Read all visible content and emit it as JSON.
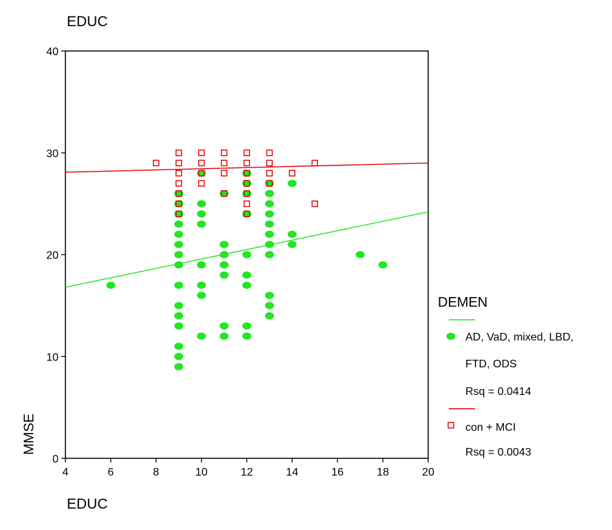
{
  "chart_data": {
    "type": "scatter",
    "title": "EDUC",
    "xlabel": "EDUC",
    "ylabel": "MMSE",
    "xlim": [
      4,
      20
    ],
    "ylim": [
      0,
      40
    ],
    "x_ticks": [
      4,
      6,
      8,
      10,
      12,
      14,
      16,
      18,
      20
    ],
    "y_ticks": [
      0,
      10,
      20,
      30,
      40
    ],
    "legend": {
      "title": "DEMEN",
      "placement": "right"
    },
    "series": [
      {
        "name": "AD, VaD, mixed, LBD, FTD, ODS",
        "marker": "filled-circle",
        "color": "#22e622",
        "points": [
          [
            6,
            17
          ],
          [
            9,
            9
          ],
          [
            9,
            10
          ],
          [
            9,
            11
          ],
          [
            9,
            13
          ],
          [
            9,
            14
          ],
          [
            9,
            15
          ],
          [
            9,
            17
          ],
          [
            9,
            19
          ],
          [
            9,
            20
          ],
          [
            9,
            21
          ],
          [
            9,
            22
          ],
          [
            9,
            23
          ],
          [
            9,
            24
          ],
          [
            9,
            25
          ],
          [
            9,
            26
          ],
          [
            10,
            12
          ],
          [
            10,
            16
          ],
          [
            10,
            17
          ],
          [
            10,
            19
          ],
          [
            10,
            23
          ],
          [
            10,
            24
          ],
          [
            10,
            25
          ],
          [
            10,
            28
          ],
          [
            11,
            12
          ],
          [
            11,
            13
          ],
          [
            11,
            18
          ],
          [
            11,
            19
          ],
          [
            11,
            20
          ],
          [
            11,
            21
          ],
          [
            11,
            26
          ],
          [
            12,
            12
          ],
          [
            12,
            13
          ],
          [
            12,
            17
          ],
          [
            12,
            18
          ],
          [
            12,
            20
          ],
          [
            12,
            24
          ],
          [
            12,
            26
          ],
          [
            12,
            27
          ],
          [
            12,
            28
          ],
          [
            13,
            14
          ],
          [
            13,
            15
          ],
          [
            13,
            16
          ],
          [
            13,
            20
          ],
          [
            13,
            21
          ],
          [
            13,
            22
          ],
          [
            13,
            23
          ],
          [
            13,
            24
          ],
          [
            13,
            25
          ],
          [
            13,
            26
          ],
          [
            13,
            27
          ],
          [
            14,
            21
          ],
          [
            14,
            22
          ],
          [
            14,
            27
          ],
          [
            17,
            20
          ],
          [
            18,
            19
          ]
        ],
        "fit": {
          "x": [
            4,
            20
          ],
          "y": [
            16.8,
            24.2
          ]
        },
        "rsq_label": "Rsq = 0.0414"
      },
      {
        "name": "con + MCI",
        "marker": "open-square",
        "color": "#e00000",
        "points": [
          [
            8,
            29
          ],
          [
            9,
            24
          ],
          [
            9,
            25
          ],
          [
            9,
            26
          ],
          [
            9,
            27
          ],
          [
            9,
            28
          ],
          [
            9,
            29
          ],
          [
            9,
            30
          ],
          [
            10,
            27
          ],
          [
            10,
            28
          ],
          [
            10,
            29
          ],
          [
            10,
            30
          ],
          [
            11,
            26
          ],
          [
            11,
            28
          ],
          [
            11,
            29
          ],
          [
            11,
            30
          ],
          [
            12,
            24
          ],
          [
            12,
            25
          ],
          [
            12,
            26
          ],
          [
            12,
            27
          ],
          [
            12,
            28
          ],
          [
            12,
            29
          ],
          [
            12,
            30
          ],
          [
            13,
            27
          ],
          [
            13,
            28
          ],
          [
            13,
            29
          ],
          [
            13,
            30
          ],
          [
            14,
            28
          ],
          [
            15,
            25
          ],
          [
            15,
            29
          ]
        ],
        "fit": {
          "x": [
            4,
            20
          ],
          "y": [
            28.1,
            29.0
          ]
        },
        "rsq_label": "Rsq = 0.0043"
      }
    ],
    "grid": false
  }
}
